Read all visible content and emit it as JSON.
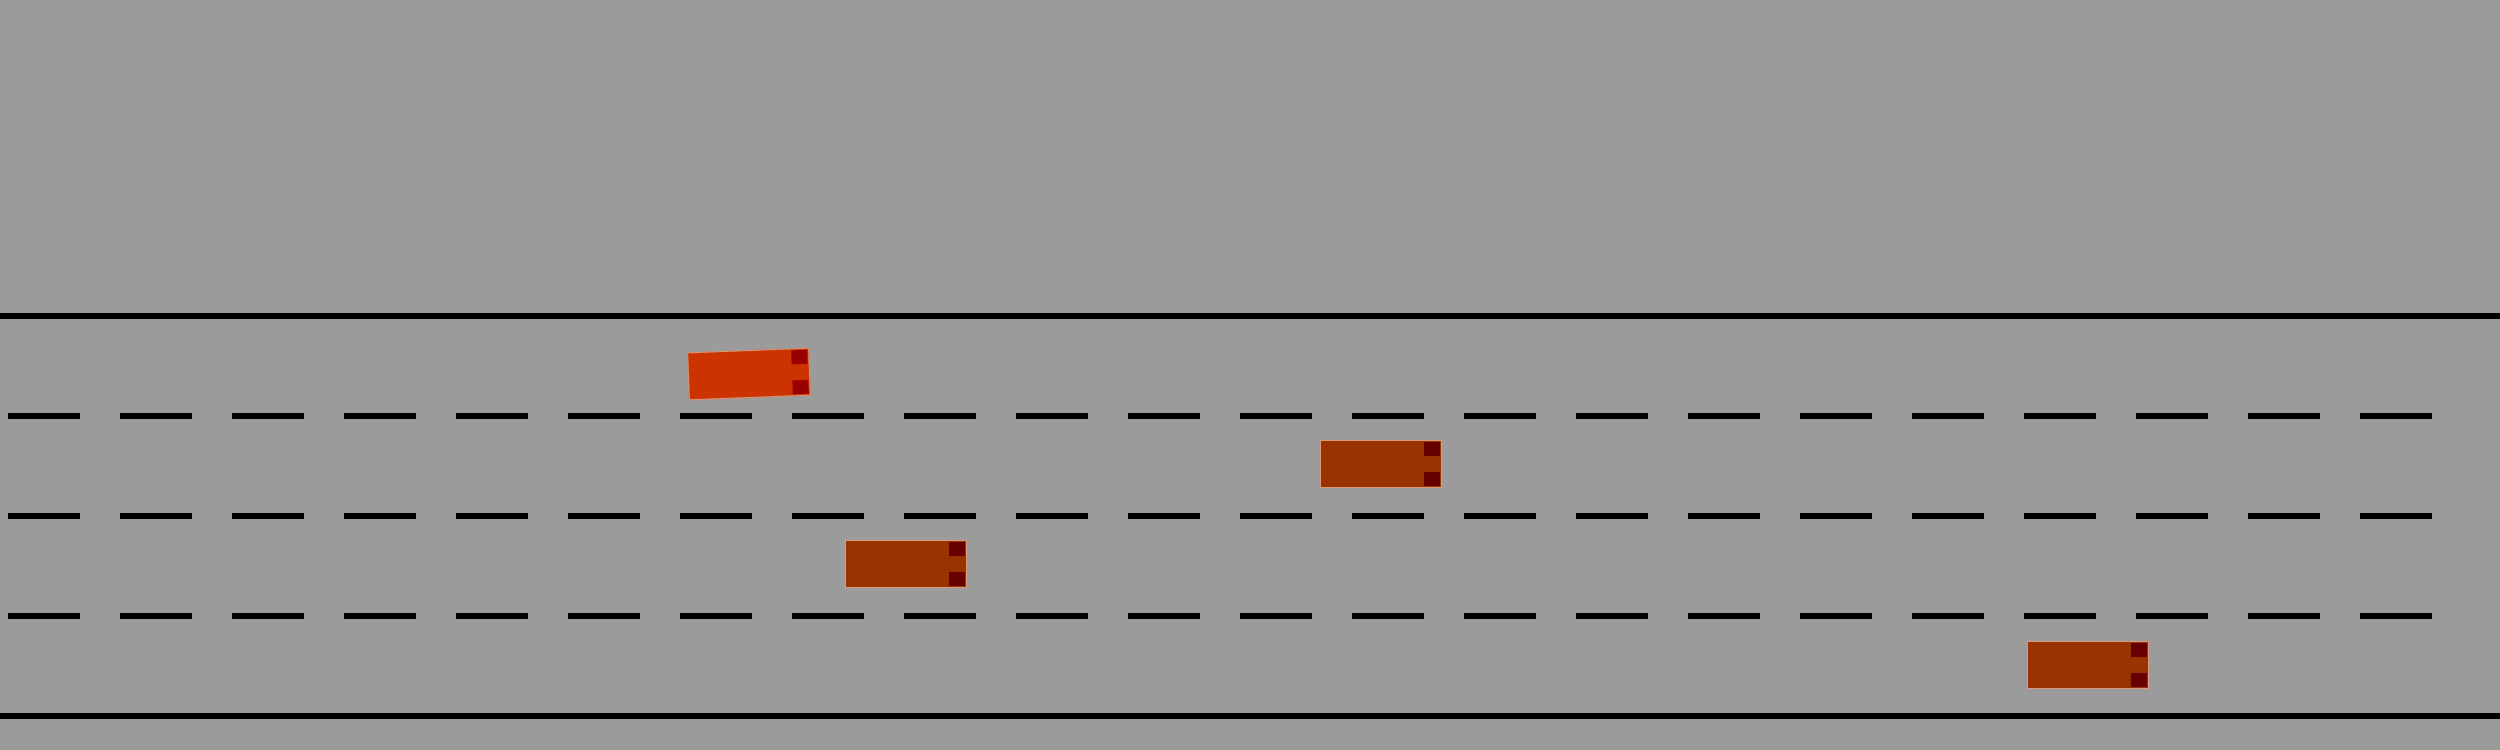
{
  "scene": {
    "road_color": "#9b9b9b",
    "marking_color": "#000000"
  },
  "ego_vehicle": {
    "body_color": "#cc3300",
    "lamp_color": "#990000",
    "lane": 1
  },
  "other_vehicles": [
    {
      "body_color": "#993300",
      "lamp_color": "#660000",
      "lane": 2
    },
    {
      "body_color": "#993300",
      "lamp_color": "#660000",
      "lane": 3
    },
    {
      "body_color": "#993300",
      "lamp_color": "#660000",
      "lane": 4
    }
  ],
  "lane_count": 4
}
